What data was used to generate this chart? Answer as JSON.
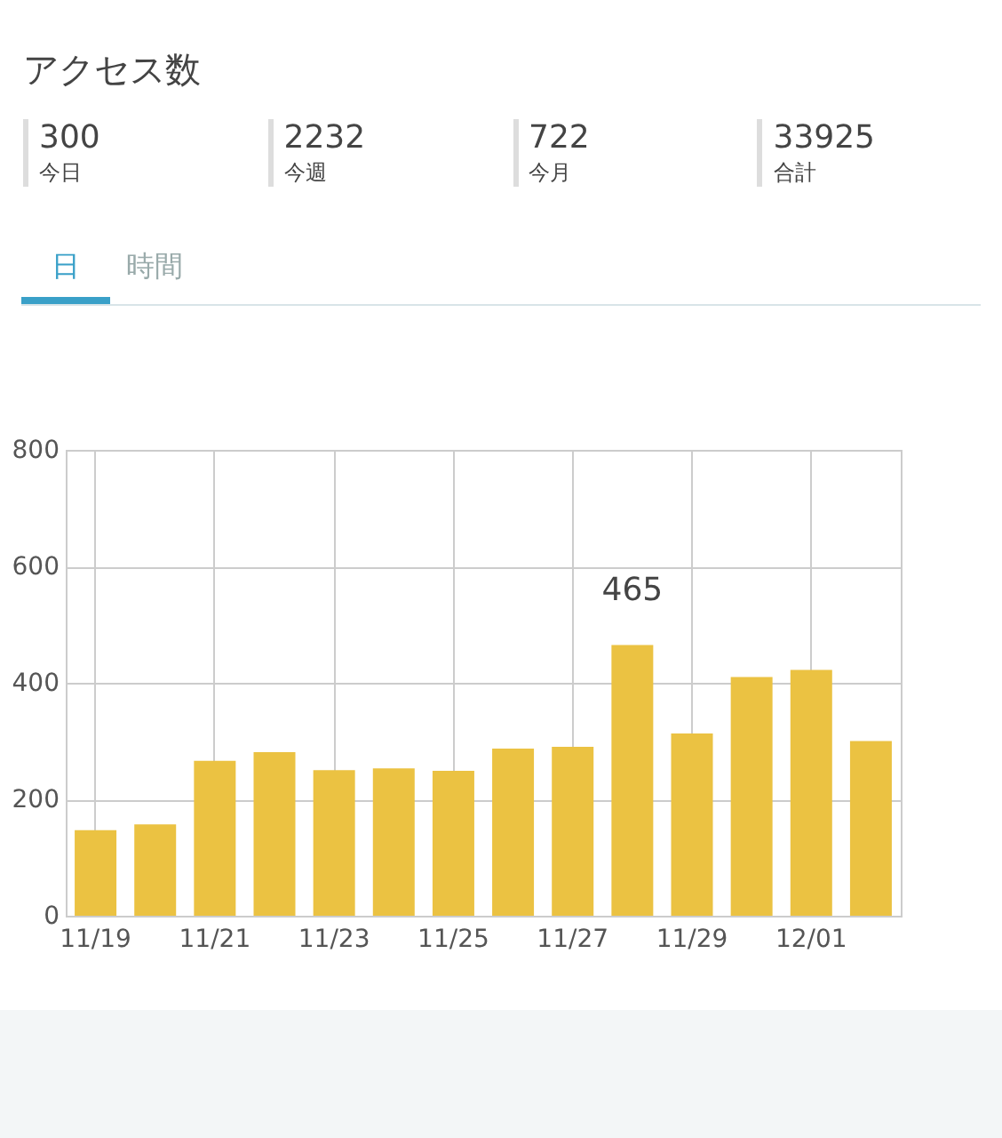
{
  "chart_data": [
    {
      "type": "other",
      "title": "アクセス数",
      "annotations": [
        "300",
        "今日",
        "2232",
        "今週",
        "722",
        "今月",
        "33925",
        "合計"
      ]
    },
    {
      "type": "bar",
      "annotations": [
        "日",
        "時間"
      ],
      "categories": [
        "11/19",
        null,
        "11/21",
        null,
        "11/23",
        null,
        "11/25",
        null,
        "11/27",
        null,
        "11/29",
        null,
        "12/01",
        null
      ],
      "values": [
        147,
        157,
        266,
        281,
        250,
        253,
        249,
        287,
        290,
        465,
        313,
        410,
        422,
        300
      ],
      "value_labels": [
        null,
        null,
        null,
        null,
        null,
        null,
        null,
        null,
        null,
        "465",
        null,
        null,
        null,
        null
      ],
      "color": "#ebc242",
      "ylim": [
        0,
        800
      ],
      "yticks": [
        0,
        200,
        400,
        600,
        800
      ],
      "grid": true
    }
  ]
}
